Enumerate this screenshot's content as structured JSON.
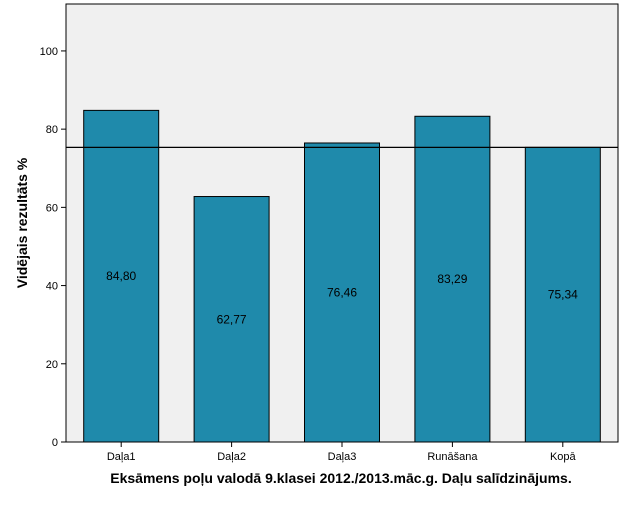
{
  "chart_data": {
    "type": "bar",
    "title": "",
    "xlabel": "Eksāmens poļu valodā 9.klasei 2012./2013.māc.g. Daļu salīdzinājums.",
    "ylabel": "Vidējais rezultāts %",
    "categories": [
      "Daļa1",
      "Daļa2",
      "Daļa3",
      "Runāšana",
      "Kopā"
    ],
    "values": [
      84.8,
      62.77,
      76.46,
      83.29,
      75.34
    ],
    "data_labels": [
      "84,80",
      "62,77",
      "76,46",
      "83,29",
      "75,34"
    ],
    "ylim": [
      0,
      112
    ],
    "yticks": [
      0,
      20,
      40,
      60,
      80,
      100
    ],
    "ytick_labels": [
      "0",
      "20",
      "40",
      "60",
      "80",
      "100"
    ],
    "reference_line": 75.34,
    "grid": false,
    "legend": "none",
    "colors": {
      "bar_fill": "#1F8AAB",
      "bar_stroke": "#000000",
      "plot_background": "#F0F0F0",
      "axis": "#000000",
      "reference_line": "#000000"
    }
  }
}
